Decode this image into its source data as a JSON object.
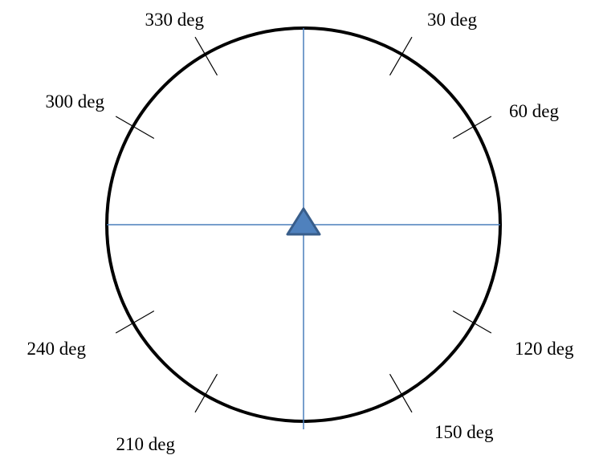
{
  "diagram": {
    "labels": [
      {
        "angle": 30,
        "text": "30 deg"
      },
      {
        "angle": 60,
        "text": "60 deg"
      },
      {
        "angle": 120,
        "text": "120 deg"
      },
      {
        "angle": 150,
        "text": "150 deg"
      },
      {
        "angle": 210,
        "text": "210 deg"
      },
      {
        "angle": 240,
        "text": "240 deg"
      },
      {
        "angle": 300,
        "text": "300 deg"
      },
      {
        "angle": 330,
        "text": "330 deg"
      }
    ],
    "colors": {
      "circle": "#000000",
      "crosshair": "#4a7ebb",
      "marker_fill": "#4f81bd",
      "marker_stroke": "#385d8a",
      "tick": "#000000"
    },
    "marker_shape": "triangle",
    "tick_angles": [
      30,
      60,
      120,
      150,
      210,
      240,
      300,
      330
    ]
  }
}
